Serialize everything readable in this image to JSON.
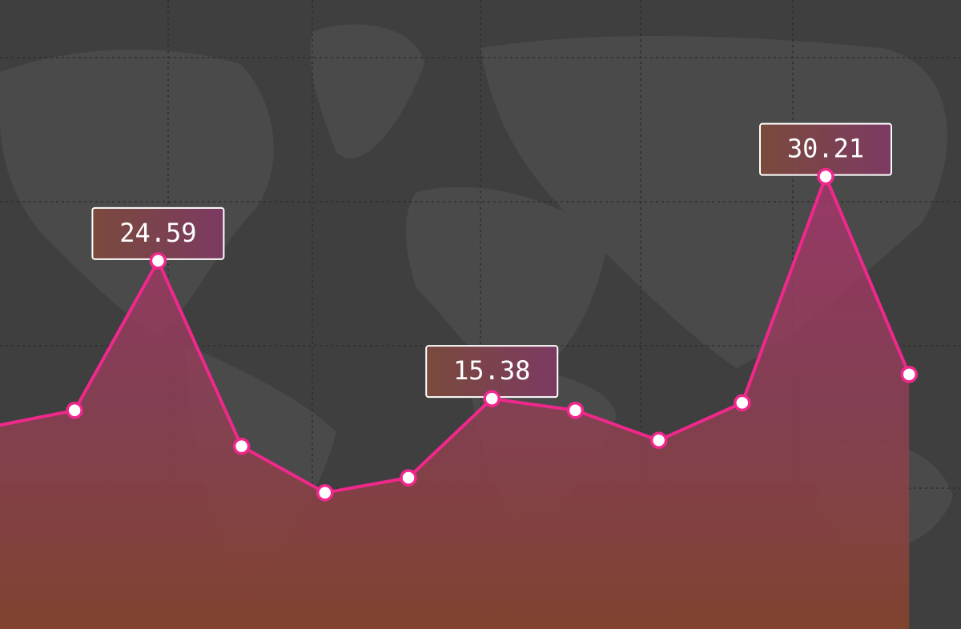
{
  "chart_data": {
    "type": "area",
    "values": [
      13.5,
      14.6,
      24.59,
      12.2,
      9.1,
      10.1,
      15.38,
      14.6,
      12.6,
      15.1,
      30.21,
      17.0
    ],
    "annotated": [
      2,
      6,
      10
    ],
    "ylim": [
      0,
      42
    ],
    "color": "#f0288c"
  }
}
